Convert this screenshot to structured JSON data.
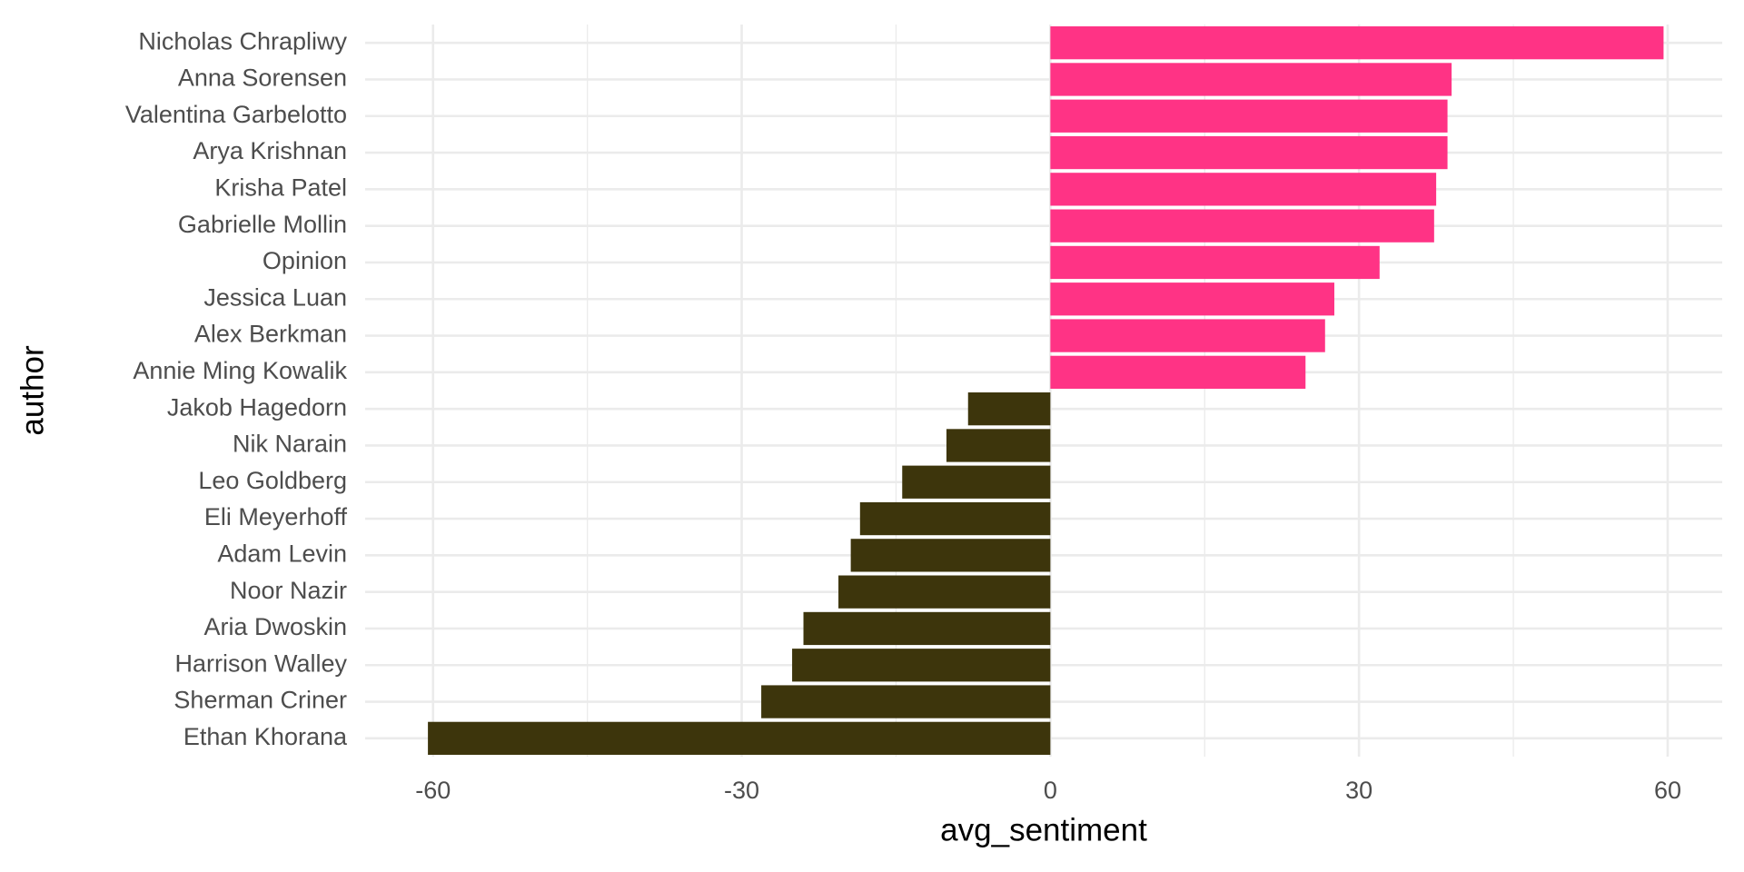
{
  "chart_data": {
    "type": "barh",
    "x_label": "avg_sentiment",
    "y_label": "author",
    "categories": [
      "Nicholas Chrapliwy",
      "Anna Sorensen",
      "Valentina Garbelotto",
      "Arya Krishnan",
      "Krisha Patel",
      "Gabrielle Mollin",
      "Opinion",
      "Jessica Luan",
      "Alex Berkman",
      "Annie Ming Kowalik",
      "Jakob Hagedorn",
      "Nik Narain",
      "Leo Goldberg",
      "Eli Meyerhoff",
      "Adam Levin",
      "Noor Nazir",
      "Aria Dwoskin",
      "Harrison Walley",
      "Sherman Criner",
      "Ethan Khorana"
    ],
    "values": [
      59.6,
      39.0,
      38.6,
      38.6,
      37.5,
      37.3,
      32.0,
      27.6,
      26.7,
      24.8,
      -8.0,
      -10.1,
      -14.4,
      -18.5,
      -19.4,
      -20.6,
      -24.0,
      -25.1,
      -28.1,
      -60.5
    ],
    "colors": [
      "#ff3385",
      "#ff3385",
      "#ff3385",
      "#ff3385",
      "#ff3385",
      "#ff3385",
      "#ff3385",
      "#ff3385",
      "#ff3385",
      "#ff3385",
      "#3d350c",
      "#3d350c",
      "#3d350c",
      "#3d350c",
      "#3d350c",
      "#3d350c",
      "#3d350c",
      "#3d350c",
      "#3d350c",
      "#3d350c"
    ],
    "xlim": [
      -66.6,
      65.3
    ],
    "xticks": [
      -60,
      -30,
      0,
      30,
      60
    ],
    "minor_xticks": [
      -45,
      -15,
      15,
      45
    ],
    "grid": true
  }
}
